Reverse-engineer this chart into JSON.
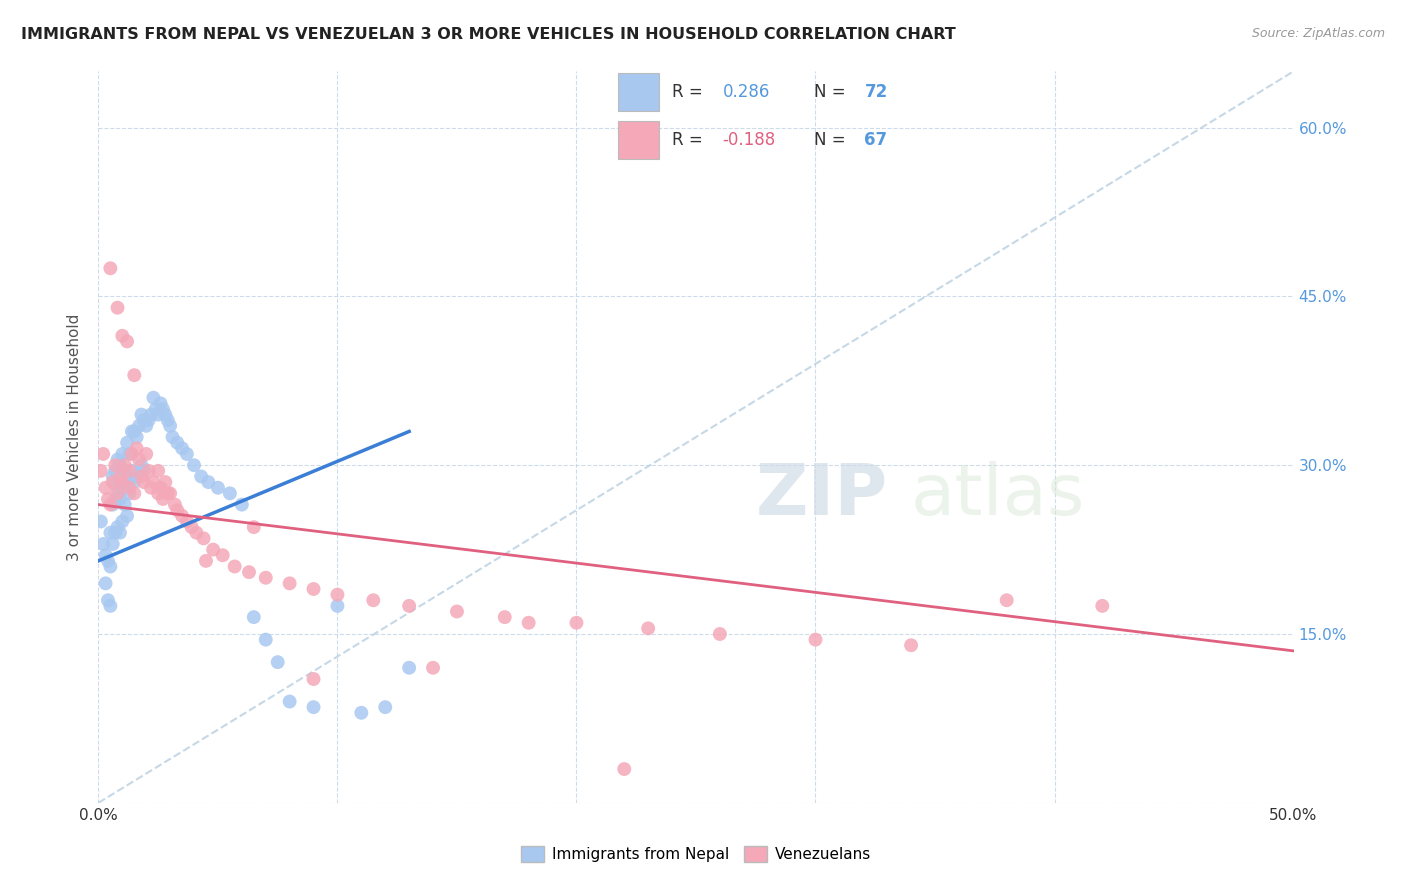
{
  "title": "IMMIGRANTS FROM NEPAL VS VENEZUELAN 3 OR MORE VEHICLES IN HOUSEHOLD CORRELATION CHART",
  "source": "Source: ZipAtlas.com",
  "ylabel": "3 or more Vehicles in Household",
  "x_min": 0.0,
  "x_max": 0.5,
  "y_min": 0.0,
  "y_max": 0.65,
  "x_ticks": [
    0.0,
    0.1,
    0.2,
    0.3,
    0.4,
    0.5
  ],
  "x_tick_labels": [
    "0.0%",
    "",
    "",
    "",
    "",
    "50.0%"
  ],
  "y_ticks": [
    0.0,
    0.15,
    0.3,
    0.45,
    0.6
  ],
  "y_tick_labels_right": [
    "",
    "15.0%",
    "30.0%",
    "45.0%",
    "60.0%"
  ],
  "nepal_R": 0.286,
  "nepal_N": 72,
  "venezuela_R": -0.188,
  "venezuela_N": 67,
  "nepal_color": "#a8c8f0",
  "venezuela_color": "#f4a8b8",
  "nepal_line_color": "#3a7fd5",
  "venezuela_line_color": "#e06080",
  "diagonal_color": "#b8cfe0",
  "background_color": "#ffffff",
  "nepal_scatter_x": [
    0.001,
    0.002,
    0.003,
    0.003,
    0.004,
    0.004,
    0.005,
    0.005,
    0.005,
    0.006,
    0.006,
    0.006,
    0.007,
    0.007,
    0.007,
    0.008,
    0.008,
    0.008,
    0.009,
    0.009,
    0.009,
    0.01,
    0.01,
    0.01,
    0.011,
    0.011,
    0.012,
    0.012,
    0.012,
    0.013,
    0.013,
    0.014,
    0.014,
    0.015,
    0.015,
    0.016,
    0.016,
    0.017,
    0.018,
    0.018,
    0.019,
    0.019,
    0.02,
    0.021,
    0.022,
    0.023,
    0.024,
    0.025,
    0.026,
    0.027,
    0.028,
    0.029,
    0.03,
    0.031,
    0.033,
    0.035,
    0.037,
    0.04,
    0.043,
    0.046,
    0.05,
    0.055,
    0.06,
    0.065,
    0.07,
    0.075,
    0.08,
    0.09,
    0.1,
    0.11,
    0.12,
    0.13
  ],
  "nepal_scatter_y": [
    0.25,
    0.23,
    0.22,
    0.195,
    0.215,
    0.18,
    0.24,
    0.21,
    0.175,
    0.29,
    0.265,
    0.23,
    0.295,
    0.27,
    0.24,
    0.305,
    0.28,
    0.245,
    0.3,
    0.27,
    0.24,
    0.31,
    0.28,
    0.25,
    0.295,
    0.265,
    0.32,
    0.285,
    0.255,
    0.31,
    0.275,
    0.33,
    0.295,
    0.33,
    0.285,
    0.325,
    0.29,
    0.335,
    0.345,
    0.3,
    0.34,
    0.295,
    0.335,
    0.34,
    0.345,
    0.36,
    0.35,
    0.345,
    0.355,
    0.35,
    0.345,
    0.34,
    0.335,
    0.325,
    0.32,
    0.315,
    0.31,
    0.3,
    0.29,
    0.285,
    0.28,
    0.275,
    0.265,
    0.165,
    0.145,
    0.125,
    0.09,
    0.085,
    0.175,
    0.08,
    0.085,
    0.12
  ],
  "venezuela_scatter_x": [
    0.001,
    0.002,
    0.003,
    0.004,
    0.005,
    0.005,
    0.006,
    0.007,
    0.008,
    0.008,
    0.009,
    0.01,
    0.01,
    0.011,
    0.012,
    0.013,
    0.013,
    0.014,
    0.015,
    0.015,
    0.016,
    0.017,
    0.018,
    0.019,
    0.02,
    0.021,
    0.022,
    0.023,
    0.025,
    0.026,
    0.027,
    0.028,
    0.029,
    0.03,
    0.032,
    0.033,
    0.035,
    0.037,
    0.039,
    0.041,
    0.044,
    0.048,
    0.052,
    0.057,
    0.063,
    0.07,
    0.08,
    0.09,
    0.1,
    0.115,
    0.13,
    0.15,
    0.17,
    0.2,
    0.23,
    0.26,
    0.3,
    0.34,
    0.38,
    0.42,
    0.025,
    0.045,
    0.065,
    0.09,
    0.14,
    0.18,
    0.22
  ],
  "venezuela_scatter_y": [
    0.295,
    0.31,
    0.28,
    0.27,
    0.475,
    0.265,
    0.285,
    0.3,
    0.44,
    0.275,
    0.29,
    0.415,
    0.285,
    0.3,
    0.41,
    0.295,
    0.28,
    0.31,
    0.38,
    0.275,
    0.315,
    0.305,
    0.29,
    0.285,
    0.31,
    0.295,
    0.28,
    0.285,
    0.295,
    0.28,
    0.27,
    0.285,
    0.275,
    0.275,
    0.265,
    0.26,
    0.255,
    0.25,
    0.245,
    0.24,
    0.235,
    0.225,
    0.22,
    0.21,
    0.205,
    0.2,
    0.195,
    0.19,
    0.185,
    0.18,
    0.175,
    0.17,
    0.165,
    0.16,
    0.155,
    0.15,
    0.145,
    0.14,
    0.18,
    0.175,
    0.275,
    0.215,
    0.245,
    0.11,
    0.12,
    0.16,
    0.03
  ],
  "nepal_line_x": [
    0.0,
    0.13
  ],
  "nepal_line_y": [
    0.215,
    0.33
  ],
  "venezuela_line_x": [
    0.0,
    0.5
  ],
  "venezuela_line_y": [
    0.265,
    0.135
  ]
}
